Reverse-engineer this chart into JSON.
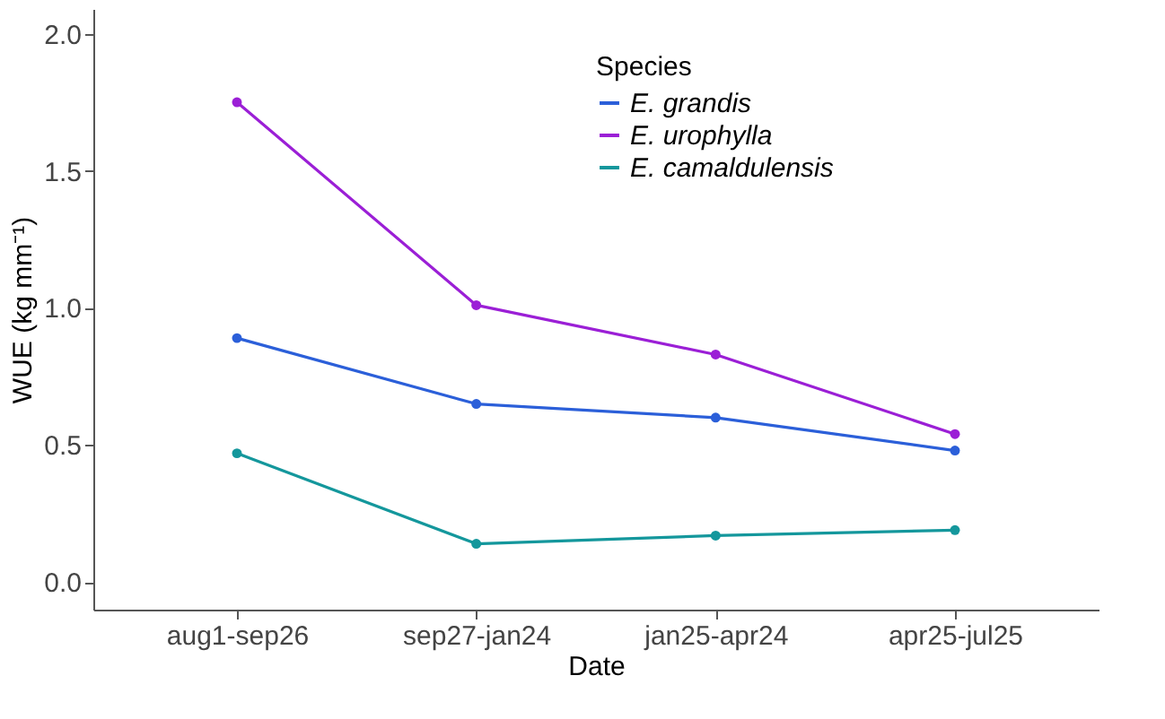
{
  "chart_data": {
    "type": "line",
    "xlabel": "Date",
    "ylabel": "WUE (kg mm⁻¹)",
    "legend_title": "Species",
    "categories": [
      "aug1-sep26",
      "sep27-jan24",
      "jan25-apr24",
      "apr25-jul25"
    ],
    "series": [
      {
        "name": "E. grandis",
        "color": "#2b5fd9",
        "values": [
          0.89,
          0.65,
          0.6,
          0.48
        ]
      },
      {
        "name": "E. urophylla",
        "color": "#9b1fd6",
        "values": [
          1.75,
          1.01,
          0.83,
          0.54
        ]
      },
      {
        "name": "E. camaldulensis",
        "color": "#14979c",
        "values": [
          0.47,
          0.14,
          0.17,
          0.19
        ]
      }
    ],
    "ylim": [
      -0.1,
      2.09
    ],
    "yticks": [
      {
        "value": 0,
        "label": "0.0"
      },
      0.5,
      {
        "value": 1,
        "label": "1.0"
      },
      1.5,
      {
        "value": 2,
        "label": "2.0"
      }
    ],
    "grid": false,
    "legend": "top right",
    "marker": "circle",
    "line_style": "solid"
  }
}
